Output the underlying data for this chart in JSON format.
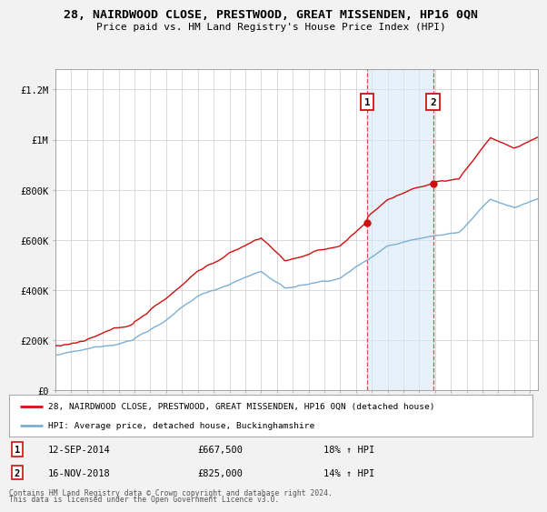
{
  "title_line1": "28, NAIRDWOOD CLOSE, PRESTWOOD, GREAT MISSENDEN, HP16 0QN",
  "title_line2": "Price paid vs. HM Land Registry's House Price Index (HPI)",
  "ylabel_ticks": [
    "£0",
    "£200K",
    "£400K",
    "£600K",
    "£800K",
    "£1M",
    "£1.2M"
  ],
  "ytick_values": [
    0,
    200000,
    400000,
    600000,
    800000,
    1000000,
    1200000
  ],
  "ylim": [
    0,
    1280000
  ],
  "xlim_start": 1995.0,
  "xlim_end": 2025.5,
  "hpi_color": "#7bafd4",
  "hpi_fill_color": "#d6e8f5",
  "price_color": "#cc1111",
  "bg_color": "#f2f2f2",
  "plot_bg": "#ffffff",
  "transaction1_x": 2014.71,
  "transaction1_y": 667500,
  "transaction2_x": 2018.88,
  "transaction2_y": 825000,
  "transaction1_date": "12-SEP-2014",
  "transaction1_price": "£667,500",
  "transaction1_hpi": "18% ↑ HPI",
  "transaction2_date": "16-NOV-2018",
  "transaction2_price": "£825,000",
  "transaction2_hpi": "14% ↑ HPI",
  "legend_line1": "28, NAIRDWOOD CLOSE, PRESTWOOD, GREAT MISSENDEN, HP16 0QN (detached house)",
  "legend_line2": "HPI: Average price, detached house, Buckinghamshire",
  "footer1": "Contains HM Land Registry data © Crown copyright and database right 2024.",
  "footer2": "This data is licensed under the Open Government Licence v3.0."
}
